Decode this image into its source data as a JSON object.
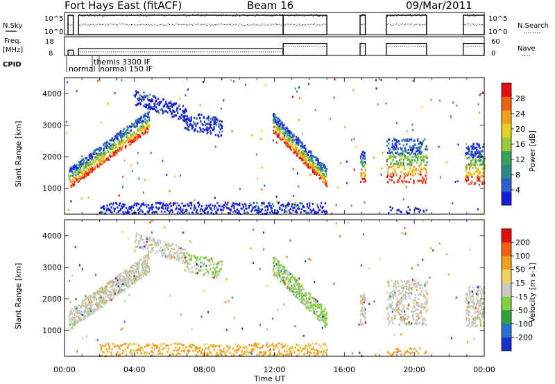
{
  "header": {
    "station": "Fort Hays East (fitACF)",
    "beam": "Beam 16",
    "date": "09/Mar/2011"
  },
  "labels": {
    "nsky": "N.Sky",
    "nsearch": "N.Search",
    "nsearch_dots": "........",
    "freq": "Freq.",
    "mhz": "[MHz]",
    "nave": "Nave",
    "nave_dots": "....",
    "cpid": "CPID",
    "cpid_names": [
      "normal",
      "themis 3300 IF",
      "normal 150 IF"
    ],
    "xaxis": "Time UT",
    "power_axis": "Power [dB]",
    "velocity_axis": "Velocity [m s-1]",
    "range_axis": "Slant Range [km]"
  },
  "colors": {
    "frame": "#000000",
    "power_scale": [
      "#1a1adc",
      "#2f5fd0",
      "#2f8a8a",
      "#3aa060",
      "#9ac83c",
      "#e8d020",
      "#f0a018",
      "#f06010",
      "#e01010"
    ],
    "velocity_scale": [
      "#1a30d0",
      "#2a70d0",
      "#30a040",
      "#80d040",
      "#c8c8c0",
      "#f0d060",
      "#f0a020",
      "#f06010",
      "#e01010"
    ]
  },
  "chart_data": [
    {
      "type": "line",
      "name": "nsky-nsearch",
      "ylabel_left": [
        "10^5",
        "10^0"
      ],
      "ylabel_right": [
        "10^5",
        "10^0"
      ]
    },
    {
      "type": "line",
      "name": "freq-nave",
      "ylabel_left": [
        "18",
        "8"
      ],
      "ylabel_right": [
        "60",
        "0"
      ],
      "freq_segments": [
        {
          "start": 0.2,
          "end": 0.5,
          "mhz": 10
        },
        {
          "start": 0.8,
          "end": 12.5,
          "mhz": 11
        },
        {
          "start": 12.5,
          "end": 15.0,
          "mhz": 15
        },
        {
          "start": 16.9,
          "end": 17.2,
          "mhz": 15
        },
        {
          "start": 18.4,
          "end": 20.7,
          "mhz": 15
        },
        {
          "start": 22.8,
          "end": 24.0,
          "mhz": 15
        }
      ]
    },
    {
      "type": "heatmap",
      "name": "power",
      "xlabel": "Time UT",
      "ylabel": "Slant Range [km]",
      "xlim": [
        0,
        24
      ],
      "ylim": [
        180,
        4500
      ],
      "xticks": [
        "00:00",
        "04:00",
        "08:00",
        "12:00",
        "16:00",
        "20:00",
        "00:00"
      ],
      "yticks": [
        1000,
        2000,
        3000,
        4000
      ],
      "colorbar": {
        "label": "Power [dB]",
        "ticks": [
          4,
          8,
          12,
          16,
          20,
          24,
          28
        ],
        "range": [
          0,
          32
        ]
      }
    },
    {
      "type": "heatmap",
      "name": "velocity",
      "xlabel": "Time UT",
      "ylabel": "Slant Range [km]",
      "xlim": [
        0,
        24
      ],
      "ylim": [
        180,
        4500
      ],
      "xticks": [
        "00:00",
        "04:00",
        "08:00",
        "12:00",
        "16:00",
        "20:00",
        "00:00"
      ],
      "yticks": [
        1000,
        2000,
        3000,
        4000
      ],
      "colorbar": {
        "label": "Velocity [m s-1]",
        "ticks": [
          "200",
          "100",
          "50",
          "15",
          "-15",
          "-50",
          "-100",
          "-200"
        ]
      }
    }
  ]
}
